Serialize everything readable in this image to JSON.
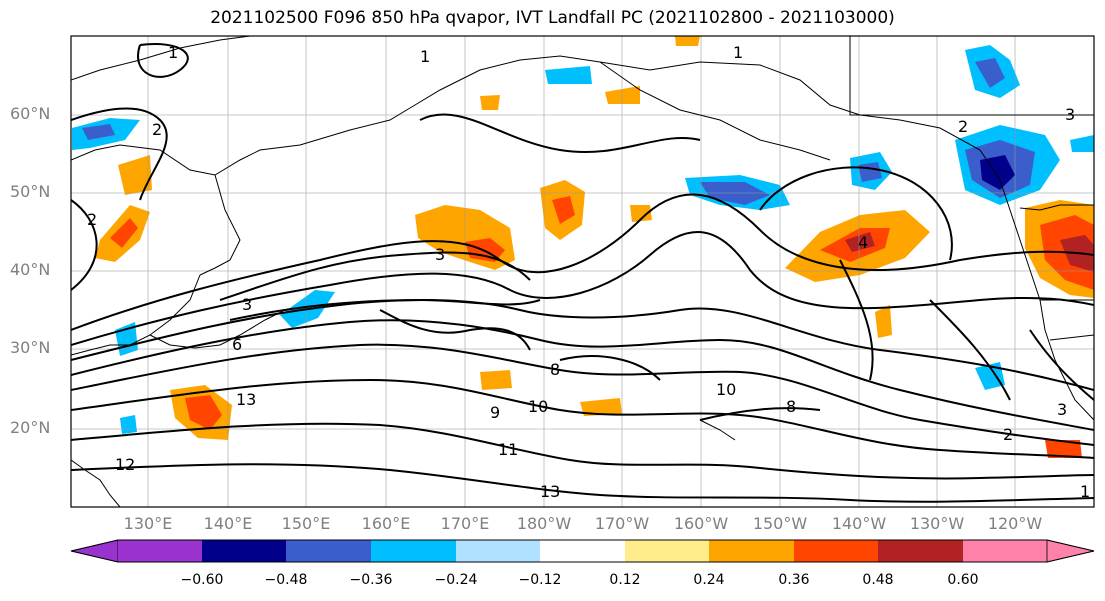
{
  "title": "2021102500 F096 850 hPa qvapor, IVT Landfall PC (2021102800 - 2021103000)",
  "latitude_labels": [
    "60°N",
    "50°N",
    "40°N",
    "30°N",
    "20°N"
  ],
  "longitude_labels": [
    "130°E",
    "140°E",
    "150°E",
    "160°E",
    "170°E",
    "180°W",
    "170°W",
    "160°W",
    "150°W",
    "140°W",
    "130°W",
    "120°W"
  ],
  "colorbar": {
    "tick_labels": [
      "−0.60",
      "−0.48",
      "−0.36",
      "−0.24",
      "−0.12",
      "0.12",
      "0.24",
      "0.36",
      "0.48",
      "0.60"
    ],
    "colors": [
      "#9a32cd",
      "#00008b",
      "#3a5fcd",
      "#00bfff",
      "#b0e2ff",
      "#ffffff",
      "#ffec8b",
      "#ffa500",
      "#ff4500",
      "#b22222",
      "#ff82ab"
    ]
  },
  "contour_labels": [
    "1",
    "1",
    "1",
    "2",
    "2",
    "2",
    "3",
    "3",
    "3",
    "8",
    "9",
    "10",
    "10",
    "11",
    "12",
    "13",
    "13",
    "1",
    "2",
    "3",
    "4",
    "6",
    "8"
  ]
}
